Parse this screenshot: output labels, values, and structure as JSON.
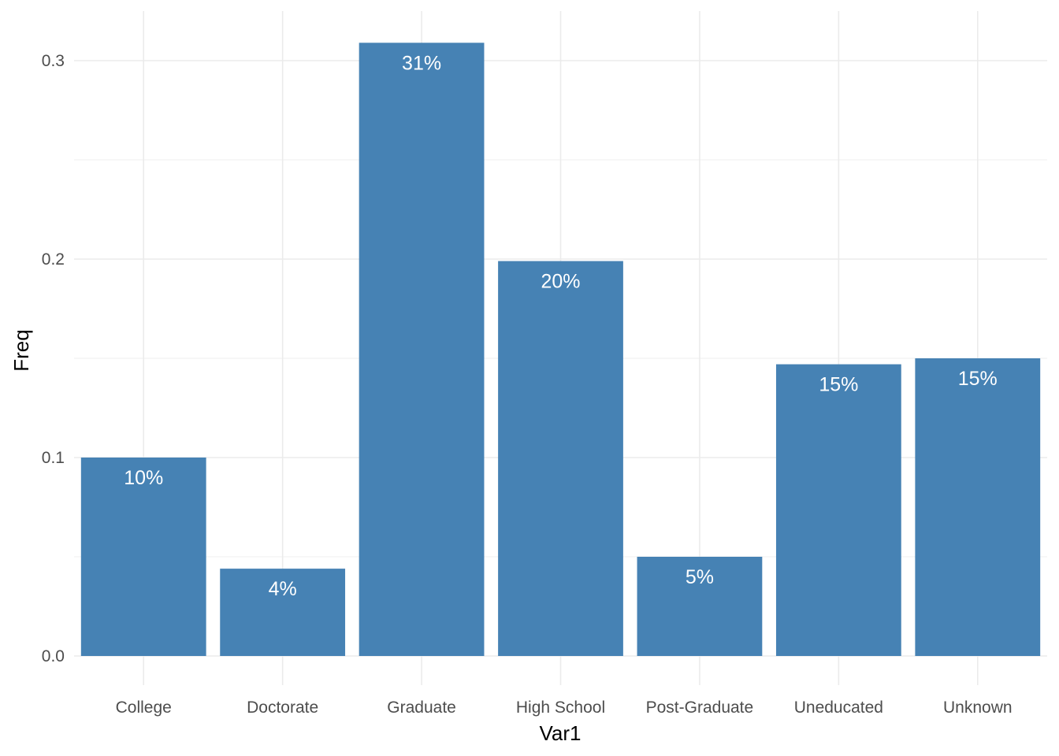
{
  "chart_data": {
    "type": "bar",
    "xlabel": "Var1",
    "ylabel": "Freq",
    "categories": [
      "College",
      "Doctorate",
      "Graduate",
      "High School",
      "Post-Graduate",
      "Uneducated",
      "Unknown"
    ],
    "values": [
      0.1,
      0.044,
      0.309,
      0.199,
      0.05,
      0.147,
      0.15
    ],
    "data_labels": [
      "10%",
      "4%",
      "31%",
      "20%",
      "5%",
      "15%",
      "15%"
    ],
    "ylim": [
      0,
      0.32
    ],
    "yticks": [
      0.0,
      0.1,
      0.2,
      0.3
    ],
    "ytick_labels": [
      "0.0",
      "0.1",
      "0.2",
      "0.3"
    ],
    "grid": true,
    "legend": "none",
    "colors": {
      "bar": "#4682b4"
    }
  }
}
